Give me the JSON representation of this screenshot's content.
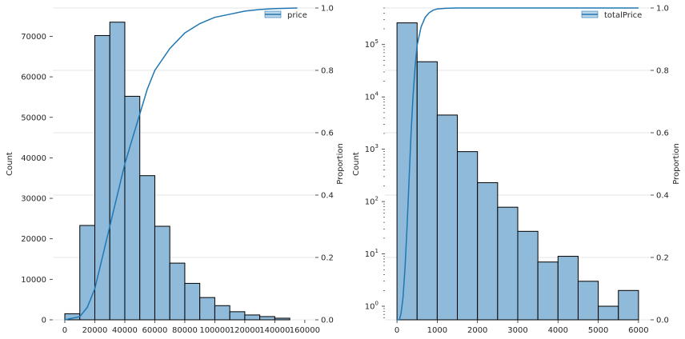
{
  "chart_data": [
    {
      "type": "bar",
      "title": "",
      "xlabel": "",
      "ylabel": "Count",
      "y2label": "Proportion",
      "xlim": [
        -8000,
        167000
      ],
      "ylim": [
        0,
        77000
      ],
      "y2lim": [
        0,
        1
      ],
      "xticks": [
        0,
        20000,
        40000,
        60000,
        80000,
        100000,
        120000,
        140000,
        160000
      ],
      "xtick_labels": [
        "0",
        "20000",
        "40000",
        "60000",
        "80000",
        "100000",
        "120000",
        "140000",
        "160000"
      ],
      "yticks": [
        0,
        10000,
        20000,
        30000,
        40000,
        50000,
        60000,
        70000
      ],
      "ytick_labels": [
        "0",
        "10000",
        "20000",
        "30000",
        "40000",
        "50000",
        "60000",
        "70000"
      ],
      "y2ticks": [
        0,
        0.2,
        0.4,
        0.6,
        0.8,
        1.0
      ],
      "y2tick_labels": [
        "0.0",
        "0.2",
        "0.4",
        "0.6",
        "0.8",
        "1.0"
      ],
      "bins": [
        {
          "x0": 0,
          "x1": 10000,
          "count": 1500
        },
        {
          "x0": 10000,
          "x1": 20000,
          "count": 23300
        },
        {
          "x0": 20000,
          "x1": 30000,
          "count": 70200
        },
        {
          "x0": 30000,
          "x1": 40000,
          "count": 73500
        },
        {
          "x0": 40000,
          "x1": 50000,
          "count": 55200
        },
        {
          "x0": 50000,
          "x1": 60000,
          "count": 35600
        },
        {
          "x0": 60000,
          "x1": 70000,
          "count": 23100
        },
        {
          "x0": 70000,
          "x1": 80000,
          "count": 14000
        },
        {
          "x0": 80000,
          "x1": 90000,
          "count": 9000
        },
        {
          "x0": 90000,
          "x1": 100000,
          "count": 5500
        },
        {
          "x0": 100000,
          "x1": 110000,
          "count": 3500
        },
        {
          "x0": 110000,
          "x1": 120000,
          "count": 2000
        },
        {
          "x0": 120000,
          "x1": 130000,
          "count": 1200
        },
        {
          "x0": 130000,
          "x1": 140000,
          "count": 800
        },
        {
          "x0": 140000,
          "x1": 150000,
          "count": 400
        }
      ],
      "ecdf": {
        "name": "price",
        "x": [
          0,
          10000,
          15000,
          20000,
          25000,
          30000,
          35000,
          40000,
          45000,
          50000,
          55000,
          60000,
          70000,
          80000,
          90000,
          100000,
          110000,
          120000,
          130000,
          140000,
          155000
        ],
        "y": [
          0.0,
          0.01,
          0.04,
          0.1,
          0.2,
          0.3,
          0.4,
          0.5,
          0.58,
          0.66,
          0.74,
          0.8,
          0.87,
          0.92,
          0.95,
          0.97,
          0.98,
          0.99,
          0.995,
          0.998,
          1.0
        ]
      },
      "legend": {
        "label": "price",
        "position": "top-right"
      },
      "grid": "horizontal"
    },
    {
      "type": "bar",
      "title": "",
      "xlabel": "",
      "ylabel": "Count",
      "y2label": "Proportion",
      "yscale": "log",
      "xlim": [
        -300,
        6300
      ],
      "ylim": [
        0.55,
        500000
      ],
      "y2lim": [
        0,
        1
      ],
      "xticks": [
        0,
        1000,
        2000,
        3000,
        4000,
        5000,
        6000
      ],
      "xtick_labels": [
        "0",
        "1000",
        "2000",
        "3000",
        "4000",
        "5000",
        "6000"
      ],
      "yticks": [
        1,
        10,
        100,
        1000,
        10000,
        100000
      ],
      "ytick_labels": [
        [
          "10",
          "0"
        ],
        [
          "10",
          "1"
        ],
        [
          "10",
          "2"
        ],
        [
          "10",
          "3"
        ],
        [
          "10",
          "4"
        ],
        [
          "10",
          "5"
        ]
      ],
      "y2ticks": [
        0,
        0.2,
        0.4,
        0.6,
        0.8,
        1.0
      ],
      "y2tick_labels": [
        "0.0",
        "0.2",
        "0.4",
        "0.6",
        "0.8",
        "1.0"
      ],
      "bins": [
        {
          "x0": 0,
          "x1": 500,
          "count": 260000
        },
        {
          "x0": 500,
          "x1": 1000,
          "count": 47000
        },
        {
          "x0": 1000,
          "x1": 1500,
          "count": 4500
        },
        {
          "x0": 1500,
          "x1": 2000,
          "count": 900
        },
        {
          "x0": 2000,
          "x1": 2500,
          "count": 230
        },
        {
          "x0": 2500,
          "x1": 3000,
          "count": 78
        },
        {
          "x0": 3000,
          "x1": 3500,
          "count": 27
        },
        {
          "x0": 3500,
          "x1": 4000,
          "count": 7
        },
        {
          "x0": 4000,
          "x1": 4500,
          "count": 9
        },
        {
          "x0": 4500,
          "x1": 5000,
          "count": 3
        },
        {
          "x0": 5000,
          "x1": 5500,
          "count": 1
        },
        {
          "x0": 5500,
          "x1": 6000,
          "count": 2
        }
      ],
      "ecdf": {
        "name": "totalPrice",
        "x": [
          0,
          60,
          100,
          150,
          200,
          250,
          300,
          350,
          400,
          450,
          500,
          600,
          700,
          800,
          900,
          1000,
          1200,
          1500,
          2000,
          3000,
          6000
        ],
        "y": [
          0.0,
          0.0,
          0.02,
          0.07,
          0.17,
          0.3,
          0.45,
          0.6,
          0.72,
          0.81,
          0.88,
          0.94,
          0.97,
          0.985,
          0.993,
          0.997,
          0.999,
          1.0,
          1.0,
          1.0,
          1.0
        ]
      },
      "legend": {
        "label": "totalPrice",
        "position": "top-right"
      },
      "grid": "horizontal"
    }
  ],
  "colors": {
    "bar_fill": "#8fbad9",
    "bar_edge": "#000000",
    "ecdf_line": "#1f77b4",
    "grid": "#dddddd",
    "axis": "#262626"
  }
}
